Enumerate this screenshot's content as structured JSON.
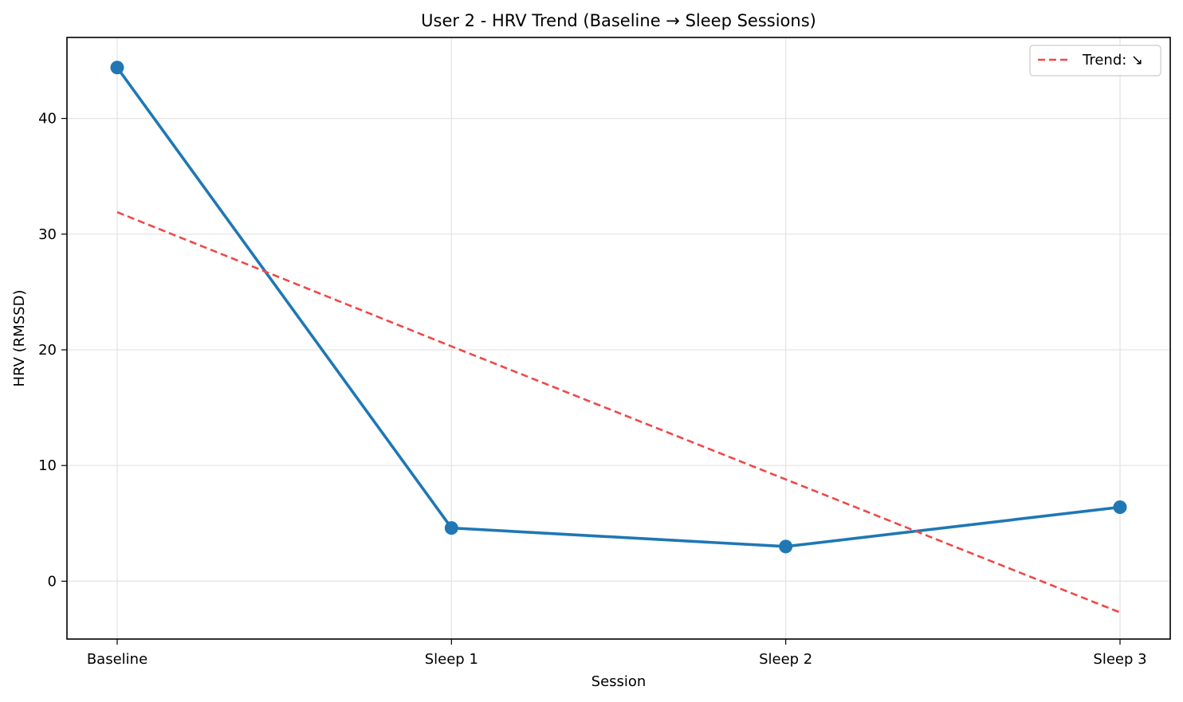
{
  "chart_data": {
    "type": "line",
    "title": "User 2 - HRV Trend (Baseline → Sleep Sessions)",
    "xlabel": "Session",
    "ylabel": "HRV (RMSSD)",
    "categories": [
      "Baseline",
      "Sleep 1",
      "Sleep 2",
      "Sleep 3"
    ],
    "ylim": [
      -5,
      47
    ],
    "yticks": [
      0,
      10,
      20,
      30,
      40
    ],
    "grid": true,
    "legend_position": "top-right",
    "series": [
      {
        "values": [
          44.4,
          4.6,
          3.0,
          6.4
        ],
        "color": "#1f77b4",
        "style": "solid",
        "marker": "circle"
      },
      {
        "name": "Trend: ↘",
        "values": [
          31.9,
          20.3,
          8.8,
          -2.7
        ],
        "color": "#f04848",
        "style": "dashed",
        "marker": "none"
      }
    ]
  }
}
